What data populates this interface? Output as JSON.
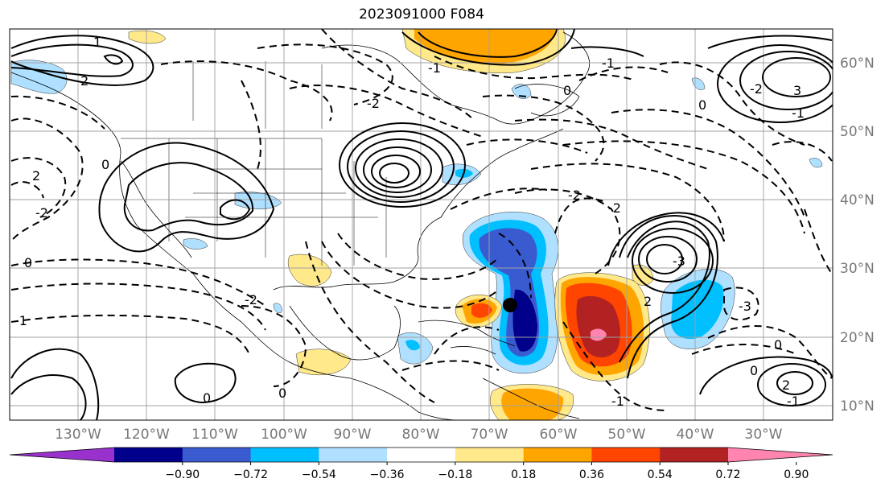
{
  "title": "2023091000 F084",
  "map": {
    "lon_ticks": [
      "130°W",
      "120°W",
      "110°W",
      "100°W",
      "90°W",
      "80°W",
      "70°W",
      "60°W",
      "50°W",
      "40°W",
      "30°W"
    ],
    "lat_ticks": [
      "60°N",
      "50°N",
      "40°N",
      "30°N",
      "20°N",
      "10°N"
    ],
    "storm_marker": "tropical-cyclone-position",
    "contour_labels": [
      "1",
      "2",
      "-1",
      "-2",
      "2",
      "-2",
      "0",
      "0",
      "-2",
      "-1",
      "0",
      "2",
      "-3",
      "3",
      "-1",
      "0",
      "-2",
      "-2",
      "-2",
      "-3",
      "0",
      "-1",
      "0",
      "-1",
      "2",
      "-1",
      "0",
      "0"
    ]
  },
  "colorbar": {
    "tick_labels": [
      "−0.90",
      "−0.72",
      "−0.54",
      "−0.36",
      "−0.18",
      "0.18",
      "0.36",
      "0.54",
      "0.72",
      "0.90"
    ],
    "colors": [
      "#9932cc",
      "#00008b",
      "#3a5bd0",
      "#00bfff",
      "#b0e0ff",
      "#ffffff",
      "#ffe98a",
      "#ffa500",
      "#ff4500",
      "#b22222",
      "#ff85b0"
    ]
  }
}
